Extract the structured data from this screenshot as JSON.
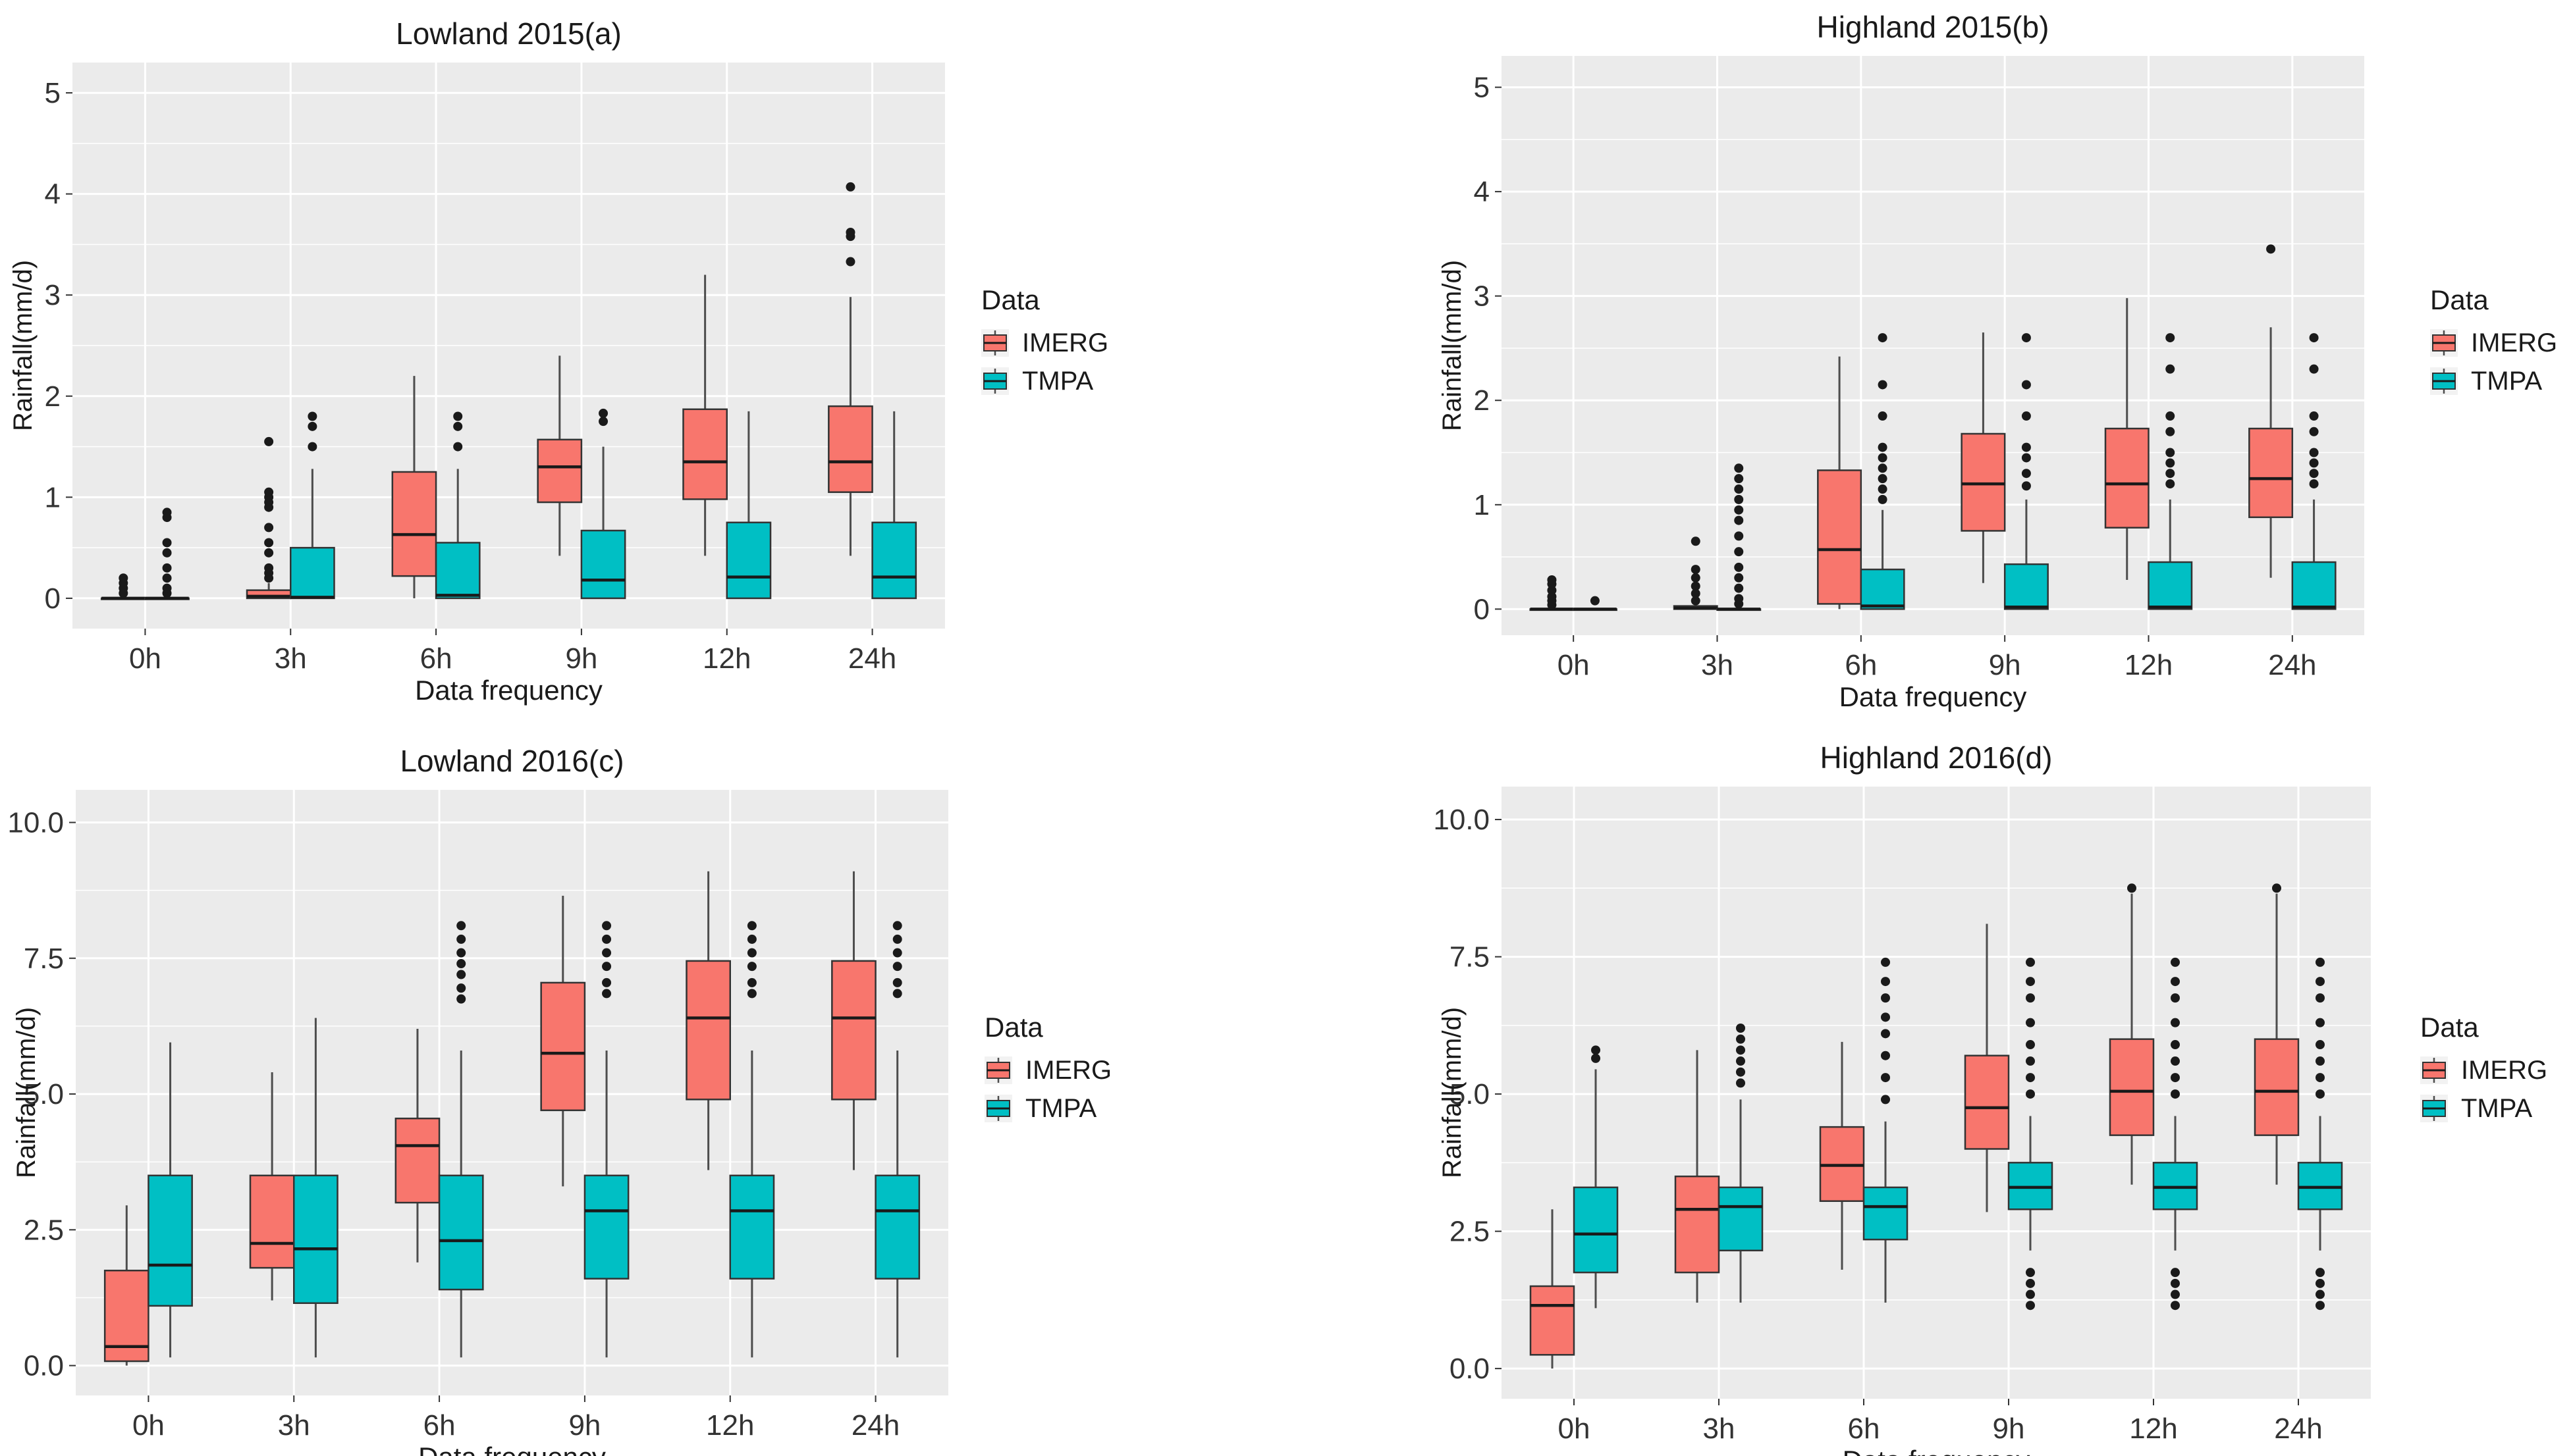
{
  "colors": {
    "imerg": "#F8766D",
    "tmpa": "#00BFC4",
    "panel_bg": "#EBEBEB",
    "grid": "#FFFFFF",
    "text": "#1A1A1A",
    "whisker": "#4D4D4D"
  },
  "chart_data": [
    {
      "type": "box",
      "title": "Lowland 2015(a)",
      "xlabel": "Data frequency",
      "ylabel": "Rainfall(mm/d)",
      "ylim": [
        -0.3,
        5.3
      ],
      "yticks": [
        0,
        1,
        2,
        3,
        4,
        5
      ],
      "ytick_labels": [
        "0",
        "1",
        "2",
        "3",
        "4",
        "5"
      ],
      "categories": [
        "0h",
        "3h",
        "6h",
        "9h",
        "12h",
        "24h"
      ],
      "legend": {
        "title": "Data",
        "entries": [
          "IMERG",
          "TMPA"
        ],
        "position": "right"
      },
      "series": [
        {
          "name": "IMERG",
          "boxes": [
            {
              "min": 0,
              "q1": 0,
              "median": 0,
              "q3": 0,
              "max": 0,
              "outliers": [
                0.05,
                0.1,
                0.15,
                0.2
              ]
            },
            {
              "min": 0,
              "q1": 0,
              "median": 0.02,
              "q3": 0.08,
              "max": 0.15,
              "outliers": [
                0.2,
                0.25,
                0.3,
                0.45,
                0.55,
                0.7,
                0.9,
                0.95,
                1.0,
                1.05,
                1.55
              ]
            },
            {
              "min": 0,
              "q1": 0.22,
              "median": 0.63,
              "q3": 1.25,
              "max": 2.2,
              "outliers": []
            },
            {
              "min": 0.42,
              "q1": 0.95,
              "median": 1.3,
              "q3": 1.57,
              "max": 2.4,
              "outliers": []
            },
            {
              "min": 0.42,
              "q1": 0.98,
              "median": 1.35,
              "q3": 1.87,
              "max": 3.2,
              "outliers": []
            },
            {
              "min": 0.42,
              "q1": 1.05,
              "median": 1.35,
              "q3": 1.9,
              "max": 2.98,
              "outliers": [
                3.33,
                3.58,
                3.62,
                4.07
              ]
            }
          ]
        },
        {
          "name": "TMPA",
          "boxes": [
            {
              "min": 0,
              "q1": 0,
              "median": 0,
              "q3": 0,
              "max": 0,
              "outliers": [
                0.05,
                0.1,
                0.2,
                0.3,
                0.45,
                0.55,
                0.8,
                0.85
              ]
            },
            {
              "min": 0,
              "q1": 0,
              "median": 0.01,
              "q3": 0.5,
              "max": 1.28,
              "outliers": [
                1.5,
                1.7,
                1.8
              ]
            },
            {
              "min": 0,
              "q1": 0,
              "median": 0.03,
              "q3": 0.55,
              "max": 1.28,
              "outliers": [
                1.5,
                1.7,
                1.8
              ]
            },
            {
              "min": 0,
              "q1": 0,
              "median": 0.18,
              "q3": 0.67,
              "max": 1.5,
              "outliers": [
                1.75,
                1.83
              ]
            },
            {
              "min": 0,
              "q1": 0,
              "median": 0.21,
              "q3": 0.75,
              "max": 1.85,
              "outliers": []
            },
            {
              "min": 0,
              "q1": 0,
              "median": 0.21,
              "q3": 0.75,
              "max": 1.85,
              "outliers": []
            }
          ]
        }
      ]
    },
    {
      "type": "box",
      "title": "Highland 2015(b)",
      "xlabel": "Data frequency",
      "ylabel": "Rainfall(mm/d)",
      "ylim": [
        -0.25,
        5.3
      ],
      "yticks": [
        0,
        1,
        2,
        3,
        4,
        5
      ],
      "ytick_labels": [
        "0",
        "1",
        "2",
        "3",
        "4",
        "5"
      ],
      "categories": [
        "0h",
        "3h",
        "6h",
        "9h",
        "12h",
        "24h"
      ],
      "legend": {
        "title": "Data",
        "entries": [
          "IMERG",
          "TMPA"
        ],
        "position": "right"
      },
      "series": [
        {
          "name": "IMERG",
          "boxes": [
            {
              "min": 0,
              "q1": 0,
              "median": 0,
              "q3": 0,
              "max": 0,
              "outliers": [
                0.04,
                0.08,
                0.12,
                0.18,
                0.24,
                0.28
              ]
            },
            {
              "min": 0,
              "q1": 0,
              "median": 0.01,
              "q3": 0.03,
              "max": 0.05,
              "outliers": [
                0.08,
                0.15,
                0.22,
                0.3,
                0.38,
                0.65
              ]
            },
            {
              "min": 0,
              "q1": 0.05,
              "median": 0.57,
              "q3": 1.33,
              "max": 2.42,
              "outliers": []
            },
            {
              "min": 0.25,
              "q1": 0.75,
              "median": 1.2,
              "q3": 1.68,
              "max": 2.65,
              "outliers": []
            },
            {
              "min": 0.28,
              "q1": 0.78,
              "median": 1.2,
              "q3": 1.73,
              "max": 2.98,
              "outliers": []
            },
            {
              "min": 0.3,
              "q1": 0.88,
              "median": 1.25,
              "q3": 1.73,
              "max": 2.7,
              "outliers": [
                3.45
              ]
            }
          ]
        },
        {
          "name": "TMPA",
          "boxes": [
            {
              "min": 0,
              "q1": 0,
              "median": 0,
              "q3": 0,
              "max": 0,
              "outliers": [
                0.08
              ]
            },
            {
              "min": 0,
              "q1": 0,
              "median": 0,
              "q3": 0,
              "max": 0,
              "outliers": [
                0.05,
                0.1,
                0.2,
                0.3,
                0.4,
                0.55,
                0.7,
                0.85,
                0.95,
                1.05,
                1.15,
                1.25,
                1.35
              ]
            },
            {
              "min": 0,
              "q1": 0,
              "median": 0.03,
              "q3": 0.38,
              "max": 0.95,
              "outliers": [
                1.05,
                1.15,
                1.25,
                1.35,
                1.45,
                1.55,
                1.85,
                2.15,
                2.6
              ]
            },
            {
              "min": 0,
              "q1": 0,
              "median": 0.02,
              "q3": 0.43,
              "max": 1.05,
              "outliers": [
                1.18,
                1.3,
                1.45,
                1.55,
                1.85,
                2.15,
                2.6
              ]
            },
            {
              "min": 0,
              "q1": 0,
              "median": 0.02,
              "q3": 0.45,
              "max": 1.05,
              "outliers": [
                1.2,
                1.3,
                1.4,
                1.5,
                1.7,
                1.85,
                2.3,
                2.6
              ]
            },
            {
              "min": 0,
              "q1": 0,
              "median": 0.02,
              "q3": 0.45,
              "max": 1.05,
              "outliers": [
                1.2,
                1.3,
                1.4,
                1.5,
                1.7,
                1.85,
                2.3,
                2.6
              ]
            }
          ]
        }
      ]
    },
    {
      "type": "box",
      "title": "Lowland 2016(c)",
      "xlabel": "Data frequency",
      "ylabel": "Rainfall(mm/d)",
      "ylim": [
        -0.55,
        10.6
      ],
      "yticks": [
        0,
        2.5,
        5,
        7.5,
        10
      ],
      "ytick_labels": [
        "0.0",
        "2.5",
        "5.0",
        "7.5",
        "10.0"
      ],
      "categories": [
        "0h",
        "3h",
        "6h",
        "9h",
        "12h",
        "24h"
      ],
      "legend": {
        "title": "Data",
        "entries": [
          "IMERG",
          "TMPA"
        ],
        "position": "right"
      },
      "series": [
        {
          "name": "IMERG",
          "boxes": [
            {
              "min": 0,
              "q1": 0.08,
              "median": 0.35,
              "q3": 1.75,
              "max": 2.95,
              "outliers": []
            },
            {
              "min": 1.2,
              "q1": 1.8,
              "median": 2.25,
              "q3": 3.5,
              "max": 5.4,
              "outliers": []
            },
            {
              "min": 1.9,
              "q1": 3.0,
              "median": 4.05,
              "q3": 4.55,
              "max": 6.2,
              "outliers": []
            },
            {
              "min": 3.3,
              "q1": 4.7,
              "median": 5.75,
              "q3": 7.05,
              "max": 8.65,
              "outliers": []
            },
            {
              "min": 3.6,
              "q1": 4.9,
              "median": 6.4,
              "q3": 7.45,
              "max": 9.1,
              "outliers": []
            },
            {
              "min": 3.6,
              "q1": 4.9,
              "median": 6.4,
              "q3": 7.45,
              "max": 9.1,
              "outliers": []
            }
          ]
        },
        {
          "name": "TMPA",
          "boxes": [
            {
              "min": 0.15,
              "q1": 1.1,
              "median": 1.85,
              "q3": 3.5,
              "max": 5.95,
              "outliers": []
            },
            {
              "min": 0.15,
              "q1": 1.15,
              "median": 2.15,
              "q3": 3.5,
              "max": 6.4,
              "outliers": []
            },
            {
              "min": 0.15,
              "q1": 1.4,
              "median": 2.3,
              "q3": 3.5,
              "max": 5.8,
              "outliers": [
                6.75,
                6.95,
                7.2,
                7.4,
                7.6,
                7.85,
                8.1
              ]
            },
            {
              "min": 0.15,
              "q1": 1.6,
              "median": 2.85,
              "q3": 3.5,
              "max": 5.8,
              "outliers": [
                6.85,
                7.05,
                7.35,
                7.6,
                7.85,
                8.1
              ]
            },
            {
              "min": 0.15,
              "q1": 1.6,
              "median": 2.85,
              "q3": 3.5,
              "max": 5.8,
              "outliers": [
                6.85,
                7.05,
                7.35,
                7.6,
                7.85,
                8.1
              ]
            },
            {
              "min": 0.15,
              "q1": 1.6,
              "median": 2.85,
              "q3": 3.5,
              "max": 5.8,
              "outliers": [
                6.85,
                7.05,
                7.35,
                7.6,
                7.85,
                8.1
              ]
            }
          ]
        }
      ]
    },
    {
      "type": "box",
      "title": "Highland 2016(d)",
      "xlabel": "Data frequency",
      "ylabel": "Rainfall(mm/d)",
      "ylim": [
        -0.55,
        10.6
      ],
      "yticks": [
        0,
        2.5,
        5,
        7.5,
        10
      ],
      "ytick_labels": [
        "0.0",
        "2.5",
        "5.0",
        "7.5",
        "10.0"
      ],
      "categories": [
        "0h",
        "3h",
        "6h",
        "9h",
        "12h",
        "24h"
      ],
      "legend": {
        "title": "Data",
        "entries": [
          "IMERG",
          "TMPA"
        ],
        "position": "right"
      },
      "series": [
        {
          "name": "IMERG",
          "boxes": [
            {
              "min": 0,
              "q1": 0.25,
              "median": 1.15,
              "q3": 1.5,
              "max": 2.9,
              "outliers": []
            },
            {
              "min": 1.2,
              "q1": 1.75,
              "median": 2.9,
              "q3": 3.5,
              "max": 5.8,
              "outliers": []
            },
            {
              "min": 1.8,
              "q1": 3.05,
              "median": 3.7,
              "q3": 4.4,
              "max": 5.95,
              "outliers": []
            },
            {
              "min": 2.85,
              "q1": 4.0,
              "median": 4.75,
              "q3": 5.7,
              "max": 8.1,
              "outliers": []
            },
            {
              "min": 3.35,
              "q1": 4.25,
              "median": 5.05,
              "q3": 6.0,
              "max": 8.65,
              "outliers": [
                8.75
              ]
            },
            {
              "min": 3.35,
              "q1": 4.25,
              "median": 5.05,
              "q3": 6.0,
              "max": 8.65,
              "outliers": [
                8.75
              ]
            }
          ]
        },
        {
          "name": "TMPA",
          "boxes": [
            {
              "min": 1.1,
              "q1": 1.75,
              "median": 2.45,
              "q3": 3.3,
              "max": 5.45,
              "outliers": [
                5.65,
                5.8
              ]
            },
            {
              "min": 1.2,
              "q1": 2.15,
              "median": 2.95,
              "q3": 3.3,
              "max": 4.9,
              "outliers": [
                5.2,
                5.4,
                5.6,
                5.8,
                6.0,
                6.2
              ]
            },
            {
              "min": 1.2,
              "q1": 2.35,
              "median": 2.95,
              "q3": 3.3,
              "max": 4.5,
              "outliers": [
                4.9,
                5.3,
                5.7,
                6.1,
                6.4,
                6.75,
                7.05,
                7.4
              ]
            },
            {
              "min": 2.15,
              "q1": 2.9,
              "median": 3.3,
              "q3": 3.75,
              "max": 4.6,
              "outliers": [
                1.15,
                1.35,
                1.55,
                1.75,
                5.0,
                5.3,
                5.6,
                5.9,
                6.3,
                6.75,
                7.05,
                7.4
              ]
            },
            {
              "min": 2.15,
              "q1": 2.9,
              "median": 3.3,
              "q3": 3.75,
              "max": 4.6,
              "outliers": [
                1.15,
                1.35,
                1.55,
                1.75,
                5.0,
                5.3,
                5.6,
                5.9,
                6.3,
                6.75,
                7.05,
                7.4
              ]
            },
            {
              "min": 2.15,
              "q1": 2.9,
              "median": 3.3,
              "q3": 3.75,
              "max": 4.6,
              "outliers": [
                1.15,
                1.35,
                1.55,
                1.75,
                5.0,
                5.3,
                5.6,
                5.9,
                6.3,
                6.75,
                7.05,
                7.4
              ]
            }
          ]
        }
      ]
    }
  ]
}
